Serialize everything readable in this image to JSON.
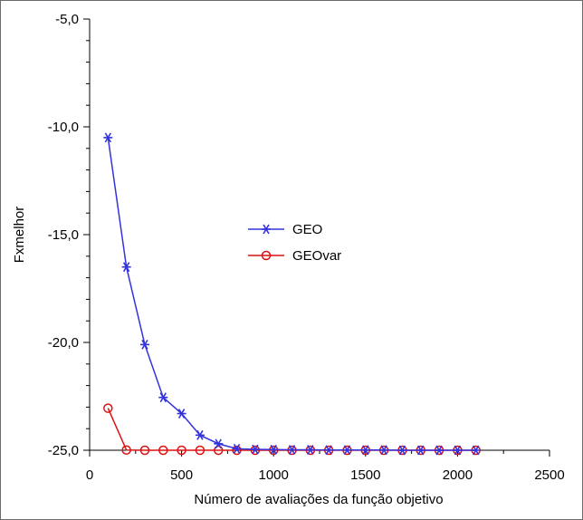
{
  "chart_data": {
    "type": "line",
    "title": "",
    "xlabel": "Número de avaliações da função objetivo",
    "ylabel": "Fxmelhor",
    "xlim": [
      0,
      2500
    ],
    "ylim": [
      -25,
      -5
    ],
    "x_ticks": [
      "0",
      "500",
      "1000",
      "1500",
      "2000",
      "2500"
    ],
    "y_ticks": [
      "-5,0",
      "-10,0",
      "-15,0",
      "-20,0",
      "-25,0"
    ],
    "grid": false,
    "legend_position": "center",
    "x": [
      100,
      200,
      300,
      400,
      500,
      600,
      700,
      800,
      900,
      1000,
      1100,
      1200,
      1300,
      1400,
      1500,
      1600,
      1700,
      1800,
      1900,
      2000,
      2100
    ],
    "series": [
      {
        "name": "GEO",
        "color": "#3333dd",
        "marker": "asterisk",
        "values": [
          -10.5,
          -16.5,
          -20.1,
          -22.55,
          -23.3,
          -24.3,
          -24.7,
          -24.93,
          -24.96,
          -24.97,
          -24.98,
          -24.98,
          -24.99,
          -24.99,
          -24.99,
          -24.99,
          -25.0,
          -25.0,
          -25.0,
          -25.0,
          -25.0
        ]
      },
      {
        "name": "GEOvar",
        "color": "#dd1111",
        "marker": "circle",
        "values": [
          -23.05,
          -24.99,
          -25.0,
          -25.0,
          -25.0,
          -25.0,
          -25.0,
          -25.0,
          -25.0,
          -25.0,
          -25.0,
          -25.0,
          -25.0,
          -25.0,
          -25.0,
          -25.0,
          -25.0,
          -25.0,
          -25.0,
          -25.0,
          -25.0
        ]
      }
    ]
  }
}
